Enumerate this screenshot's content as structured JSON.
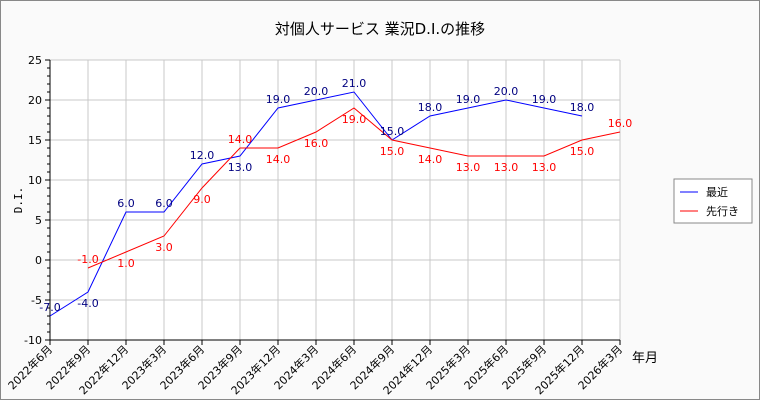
{
  "chart_data": {
    "type": "line",
    "title": "対個人サービス 業況D.I.の推移",
    "xlabel": "年月",
    "ylabel": "D.I.",
    "ylim": [
      -10,
      25
    ],
    "yticks": [
      -10,
      -5,
      0,
      5,
      10,
      15,
      20,
      25
    ],
    "grid": true,
    "legend_position": "right",
    "categories": [
      "2022年6月",
      "2022年9月",
      "2022年12月",
      "2023年3月",
      "2023年6月",
      "2023年9月",
      "2023年12月",
      "2024年3月",
      "2024年6月",
      "2024年9月",
      "2024年12月",
      "2025年3月",
      "2025年6月",
      "2025年9月",
      "2025年12月",
      "2026年3月"
    ],
    "series": [
      {
        "name": "最近",
        "color": "#0000ff",
        "label_color": "#000080",
        "values": [
          -7,
          -4,
          6,
          6,
          12,
          13,
          19,
          20,
          21,
          15,
          18,
          19,
          20,
          19,
          18,
          null
        ]
      },
      {
        "name": "先行き",
        "color": "#ff0000",
        "label_color": "#ff0000",
        "values": [
          null,
          -1,
          1,
          3,
          9,
          14,
          14,
          16,
          19,
          15,
          14,
          13,
          13,
          13,
          15,
          16
        ]
      }
    ]
  }
}
